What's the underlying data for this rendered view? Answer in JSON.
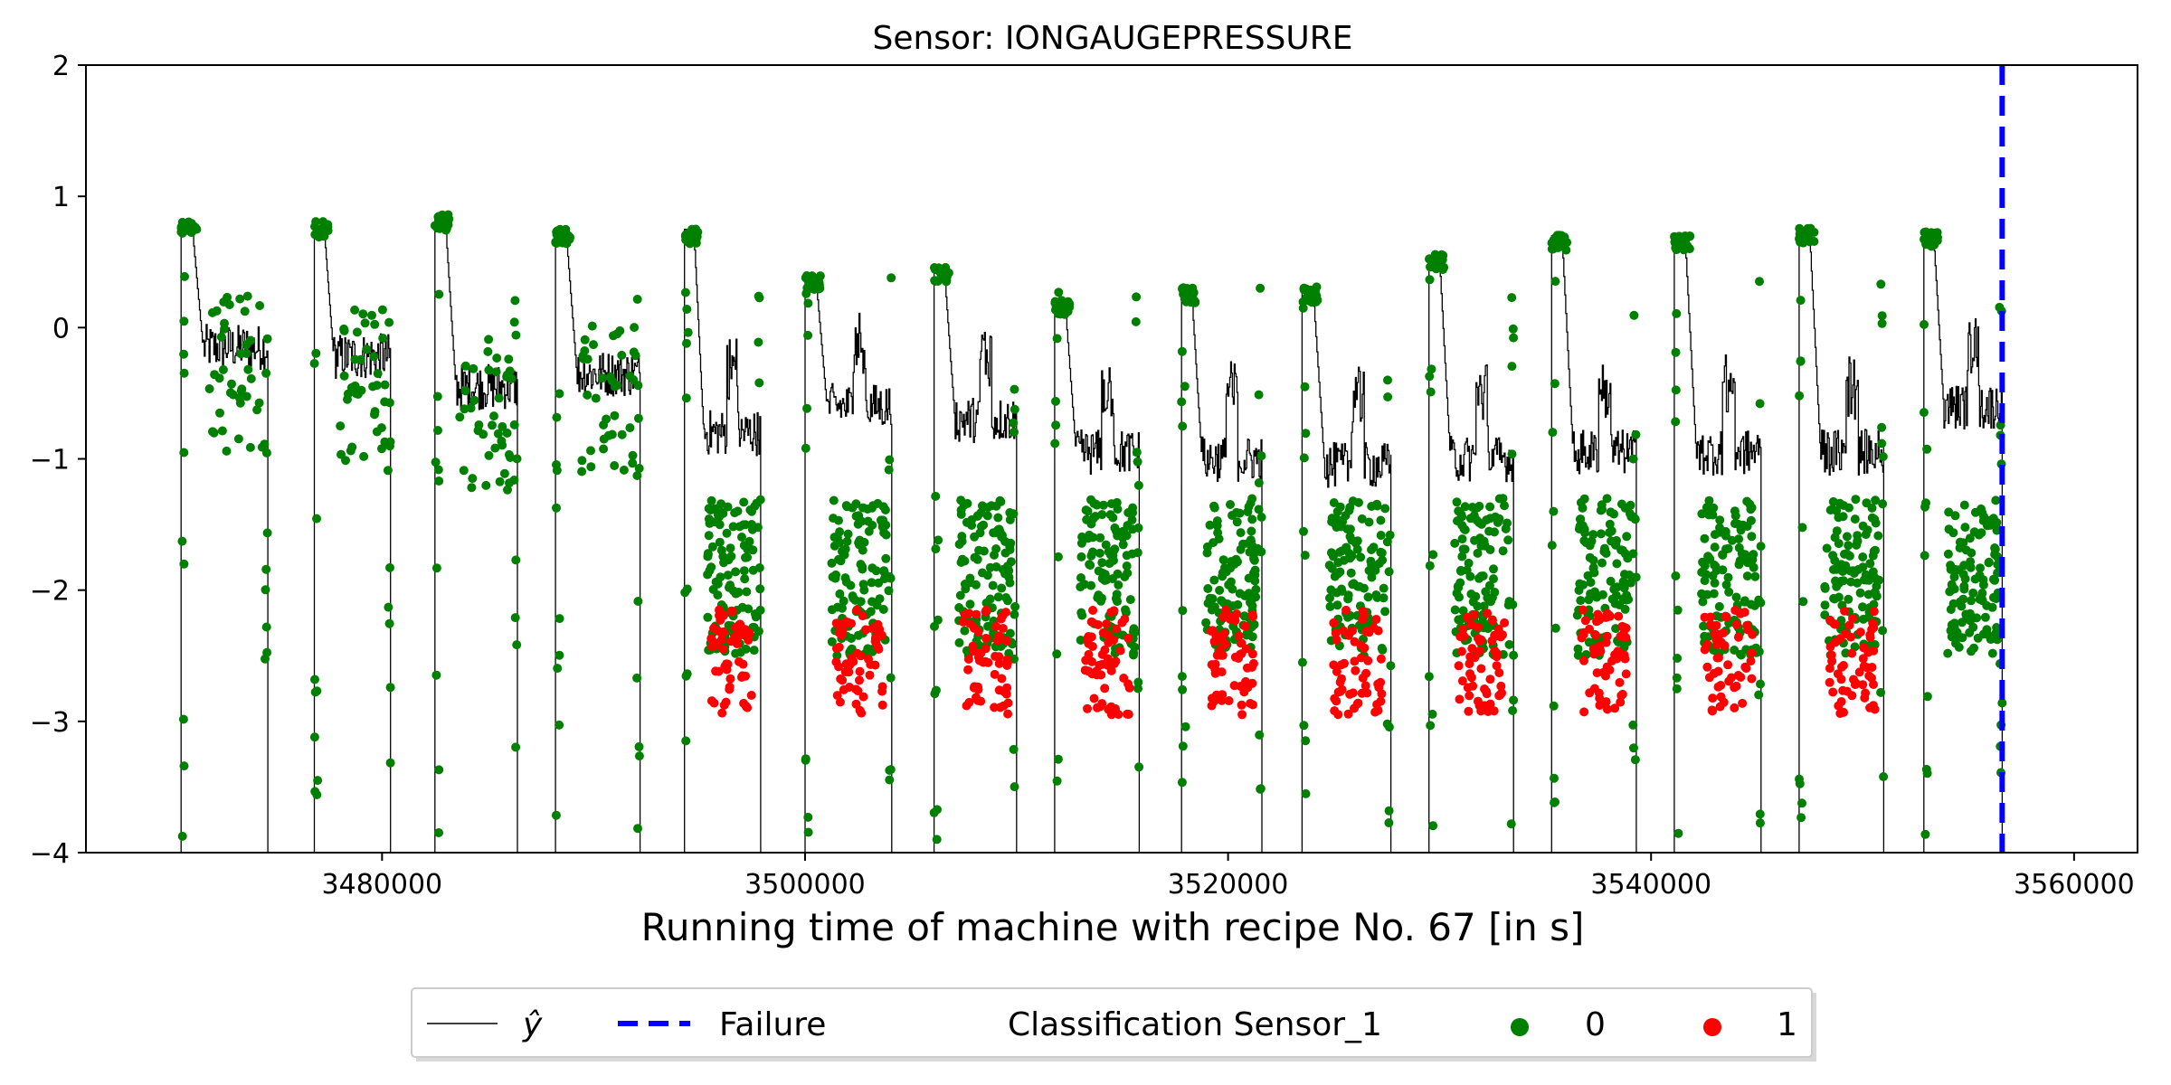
{
  "chart_data": {
    "type": "scatter",
    "title": "Sensor: IONGAUGEPRESSURE",
    "xlabel": "Running time of machine with recipe No. 67 [in s]",
    "ylabel": "",
    "xlim": [
      3466000,
      3563000
    ],
    "ylim": [
      -4,
      2
    ],
    "xticks": [
      3480000,
      3500000,
      3520000,
      3540000,
      3560000
    ],
    "yticks": [
      -4,
      -3,
      -2,
      -1,
      0,
      1,
      2
    ],
    "grid": false,
    "legend_placement": "bottom-center",
    "failure_x": 3556600,
    "cycles": [
      [
        3470500,
        0.8,
        -0.15,
        3474600
      ],
      [
        3476800,
        0.8,
        -0.22,
        3480400
      ],
      [
        3482500,
        0.85,
        -0.45,
        3486400
      ],
      [
        3488200,
        0.75,
        -0.35,
        3492200
      ],
      [
        3494300,
        0.75,
        -0.8,
        3497900
      ],
      [
        3500000,
        0.4,
        -0.6,
        3504100
      ],
      [
        3506100,
        0.45,
        -0.7,
        3510000
      ],
      [
        3511800,
        0.2,
        -0.95,
        3515800
      ],
      [
        3517800,
        0.3,
        -1.0,
        3521600
      ],
      [
        3523500,
        0.3,
        -1.05,
        3527700
      ],
      [
        3529500,
        0.55,
        -1.0,
        3533500
      ],
      [
        3535300,
        0.7,
        -0.95,
        3539300
      ],
      [
        3541100,
        0.7,
        -0.95,
        3545200
      ],
      [
        3547000,
        0.75,
        -0.95,
        3551000
      ],
      [
        3552900,
        0.72,
        -0.6,
        3556600
      ]
    ],
    "series": [
      {
        "name": "ŷ",
        "type": "line",
        "color": "#000000"
      },
      {
        "name": "Failure",
        "type": "vline",
        "color": "#0000ff"
      },
      {
        "name": "0",
        "type": "scatter",
        "color": "#008000"
      },
      {
        "name": "1",
        "type": "scatter",
        "color": "#ff0000"
      }
    ],
    "legend": {
      "yhat_label": "ŷ",
      "failure_label": "Failure",
      "group_title": "Classification Sensor_1",
      "class0_label": "0",
      "class1_label": "1"
    }
  }
}
